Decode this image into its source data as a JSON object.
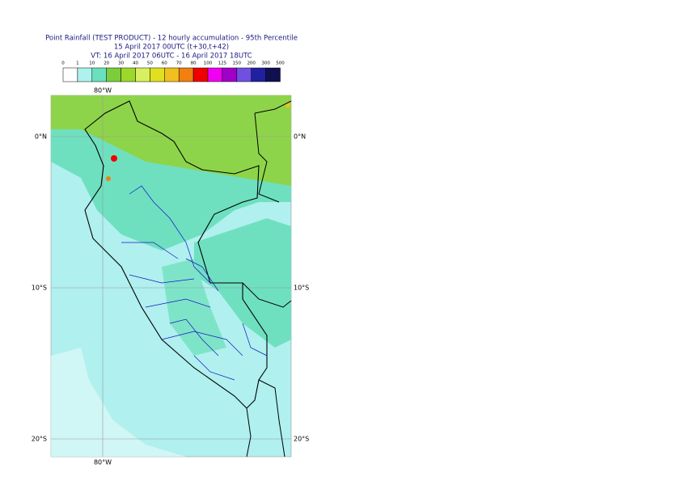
{
  "header": {
    "title": "Point Rainfall (TEST PRODUCT) - 12 hourly accumulation - 95th Percentile",
    "line2": "15 April 2017 00UTC (t+30,t+42)",
    "line3": "VT: 16 April 2017 06UTC - 16 April 2017 18UTC"
  },
  "colorbar": {
    "labels": [
      "0",
      "1",
      "10",
      "20",
      "30",
      "40",
      "50",
      "60",
      "70",
      "80",
      "100",
      "125",
      "150",
      "200",
      "300",
      "500"
    ],
    "colors": [
      "#ffffff",
      "#aef2ee",
      "#6be0be",
      "#7ccc3c",
      "#9cd82a",
      "#d8f060",
      "#e0e020",
      "#f0c020",
      "#f08010",
      "#f00000",
      "#f000f0",
      "#a000c8",
      "#7050e0",
      "#2020a0",
      "#101050"
    ]
  },
  "map": {
    "lon_labels": [
      "80°W"
    ],
    "lat_labels": [
      "0°N",
      "10°S",
      "20°S"
    ]
  }
}
